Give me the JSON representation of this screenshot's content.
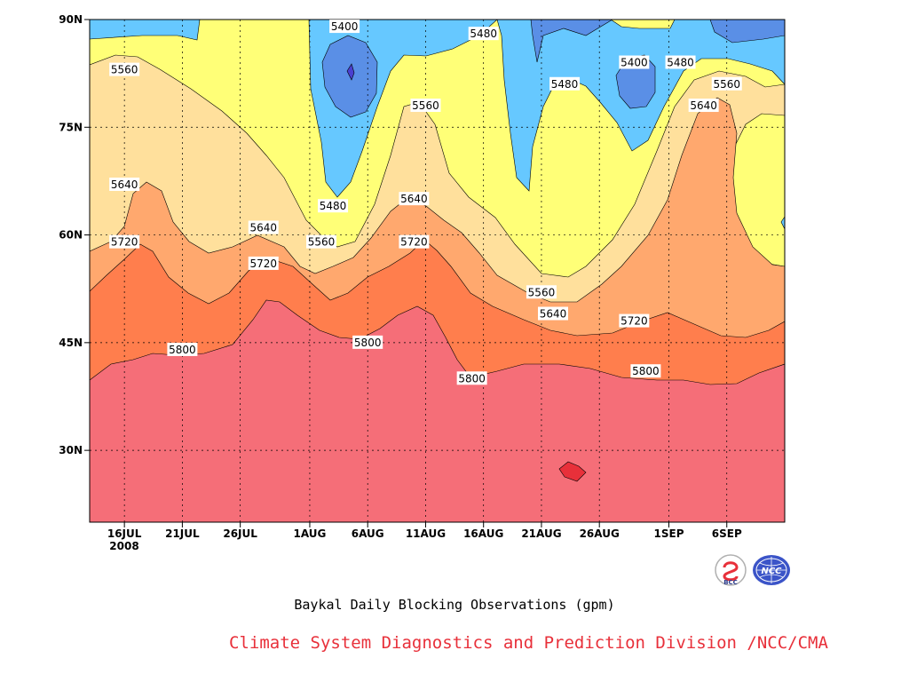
{
  "chart_data": {
    "type": "contour",
    "title": "Baykal Daily Blocking Observations (gpm)",
    "x_ticks": [
      "16JUL",
      "21JUL",
      "26JUL",
      "1AUG",
      "6AUG",
      "11AUG",
      "16AUG",
      "21AUG",
      "26AUG",
      "1SEP",
      "6SEP"
    ],
    "x_tick_year": "2008",
    "x_range": [
      "13JUL2008",
      "11SEP2008"
    ],
    "y_ticks": [
      "30N",
      "45N",
      "60N",
      "75N",
      "90N"
    ],
    "y_range": [
      20,
      90
    ],
    "grid": true,
    "contour_levels": [
      5400,
      5480,
      5560,
      5640,
      5720,
      5800
    ],
    "fill_colors": {
      "below_5320": "#4a3fcf",
      "5320_5400": "#5a8fe6",
      "5400_5480": "#66c8ff",
      "5480_5560": "#ffff77",
      "5560_5640": "#ffe09c",
      "5640_5720": "#ffa86e",
      "5720_5800": "#ff7e4d",
      "5800_5880": "#f56e78",
      "above_5880": "#e8303a"
    },
    "contour_labels": [
      {
        "text": "5400",
        "date": "4AUG",
        "lat": 89
      },
      {
        "text": "5480",
        "date": "16AUG",
        "lat": 88
      },
      {
        "text": "5400",
        "date": "29AUG",
        "lat": 84
      },
      {
        "text": "5480",
        "date": "2SEP",
        "lat": 84
      },
      {
        "text": "5560",
        "date": "16JUL",
        "lat": 83
      },
      {
        "text": "5480",
        "date": "23AUG",
        "lat": 81
      },
      {
        "text": "5560",
        "date": "6SEP",
        "lat": 81
      },
      {
        "text": "5560",
        "date": "11AUG",
        "lat": 78
      },
      {
        "text": "5640",
        "date": "4SEP",
        "lat": 78
      },
      {
        "text": "5640",
        "date": "16JUL",
        "lat": 67
      },
      {
        "text": "5640",
        "date": "10AUG",
        "lat": 65
      },
      {
        "text": "5480",
        "date": "3AUG",
        "lat": 64
      },
      {
        "text": "5640",
        "date": "28JUL",
        "lat": 61
      },
      {
        "text": "5720",
        "date": "16JUL",
        "lat": 59
      },
      {
        "text": "5560",
        "date": "2AUG",
        "lat": 59
      },
      {
        "text": "5720",
        "date": "10AUG",
        "lat": 59
      },
      {
        "text": "5720",
        "date": "28JUL",
        "lat": 56
      },
      {
        "text": "5560",
        "date": "21AUG",
        "lat": 52
      },
      {
        "text": "5640",
        "date": "22AUG",
        "lat": 49
      },
      {
        "text": "5720",
        "date": "29AUG",
        "lat": 48
      },
      {
        "text": "5800",
        "date": "6AUG",
        "lat": 45
      },
      {
        "text": "5800",
        "date": "21JUL",
        "lat": 44
      },
      {
        "text": "5800",
        "date": "30AUG",
        "lat": 41
      },
      {
        "text": "5800",
        "date": "15AUG",
        "lat": 40
      }
    ]
  },
  "caption": {
    "title": "Baykal Daily Blocking Observations (gpm)",
    "credit": "Climate System Diagnostics and Prediction Division /NCC/CMA",
    "credit_color": "#e8303a"
  },
  "logos": [
    {
      "icon": "bcc-logo",
      "text": "BCC"
    },
    {
      "icon": "ncc-logo",
      "text": "NCC"
    }
  ]
}
